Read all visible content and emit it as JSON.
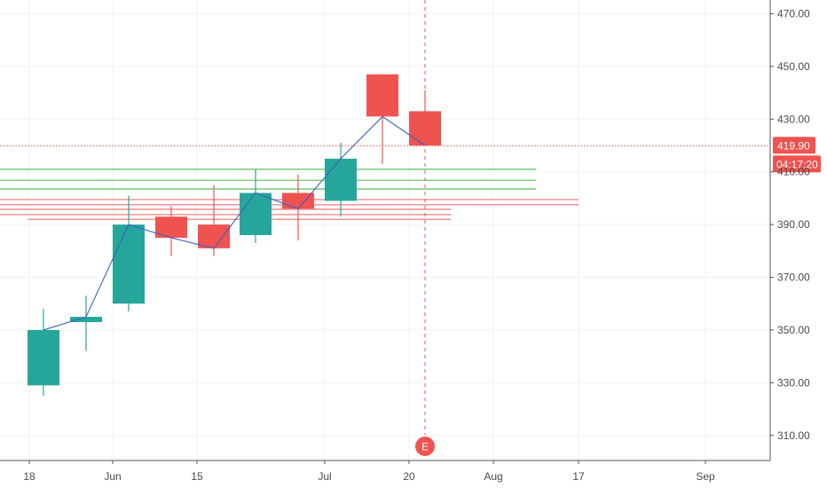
{
  "chart_data": {
    "type": "candlestick",
    "x_axis": {
      "tick_labels": [
        "18",
        "Jun",
        "15",
        "Jul",
        "20",
        "Aug",
        "17",
        "Sep"
      ]
    },
    "y_axis": {
      "ylim": [
        300.5,
        475.2
      ],
      "tick_values": [
        310,
        330,
        350,
        370,
        390,
        410,
        430,
        450,
        470
      ],
      "tick_labels": [
        "310.00",
        "330.00",
        "350.00",
        "370.00",
        "390.00",
        "410.00",
        "430.00",
        "450.00",
        "470.00"
      ],
      "position": "right"
    },
    "candles": [
      {
        "period": 0,
        "open": 329.0,
        "high": 358.0,
        "low": 325.0,
        "close": 350.0
      },
      {
        "period": 1,
        "open": 353.0,
        "high": 363.0,
        "low": 342.0,
        "close": 355.0
      },
      {
        "period": 2,
        "open": 360.0,
        "high": 401.0,
        "low": 357.0,
        "close": 390.0
      },
      {
        "period": 3,
        "open": 393.0,
        "high": 397.0,
        "low": 378.0,
        "close": 385.0
      },
      {
        "period": 4,
        "open": 390.0,
        "high": 405.0,
        "low": 378.0,
        "close": 381.0
      },
      {
        "period": 5,
        "open": 386.0,
        "high": 411.0,
        "low": 383.0,
        "close": 402.0
      },
      {
        "period": 6,
        "open": 402.0,
        "high": 409.0,
        "low": 384.0,
        "close": 396.0
      },
      {
        "period": 7,
        "open": 399.0,
        "high": 421.0,
        "low": 393.0,
        "close": 415.0
      },
      {
        "period": 8,
        "open": 447.0,
        "high": 447.0,
        "low": 413.0,
        "close": 431.0
      },
      {
        "period": 9,
        "open": 433.0,
        "high": 441.0,
        "low": 420.0,
        "close": 420.0
      }
    ],
    "close_line": {
      "color": "#3f5fbf"
    },
    "horizontal_levels": {
      "green": {
        "color": "#5cbf5c",
        "values": [
          411.0,
          406.8,
          403.5
        ]
      },
      "red": {
        "color": "#f28a8a",
        "values": [
          399.5,
          397.5,
          395.8,
          393.8,
          392.0
        ]
      }
    },
    "last_price": {
      "label": "419.90",
      "value": 419.9
    },
    "countdown": {
      "label": "04:17:20"
    },
    "event_marker": {
      "label": "E",
      "period": 9
    },
    "grid": true,
    "colors": {
      "up": "#26a69a",
      "down": "#ef5350",
      "grid": "#f0f3f6",
      "axis": "#555555"
    }
  }
}
